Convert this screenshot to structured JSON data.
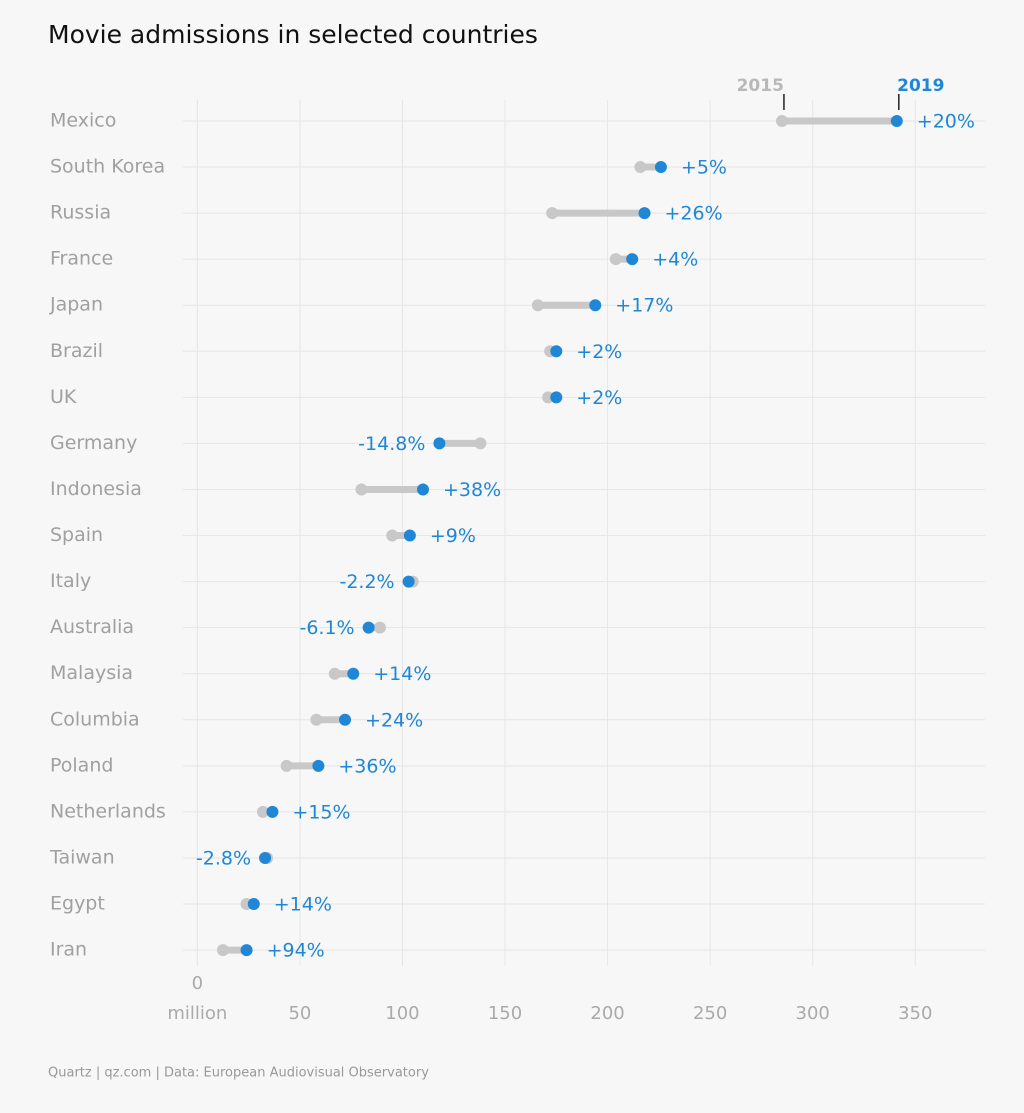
{
  "chart_data": {
    "type": "dumbbell",
    "title": "Movie admissions in selected countries",
    "x_label": "million",
    "source": "Quartz | qz.com | Data: European Audiovisual Observatory",
    "categories": [
      "Mexico",
      "South Korea",
      "Russia",
      "France",
      "Japan",
      "Brazil",
      "UK",
      "Germany",
      "Indonesia",
      "Spain",
      "Italy",
      "Australia",
      "Malaysia",
      "Columbia",
      "Poland",
      "Netherlands",
      "Taiwan",
      "Egypt",
      "Iran"
    ],
    "series": [
      {
        "name": "2015",
        "color": "#c8c8c8",
        "label_color": "#b8b8b8",
        "values": [
          285,
          216,
          173,
          204,
          166,
          172,
          171,
          138,
          80,
          95,
          105,
          89,
          67,
          58,
          43.5,
          32,
          34,
          24,
          12.5
        ]
      },
      {
        "name": "2019",
        "color": "#1f87d6",
        "label_color": "#1f87d6",
        "values": [
          341,
          226,
          218,
          212,
          194,
          175,
          175,
          118,
          110,
          103.6,
          103,
          83.5,
          76,
          72,
          59,
          36.6,
          33,
          27.5,
          24
        ]
      }
    ],
    "change_labels": [
      "+20%",
      "+5%",
      "+26%",
      "+4%",
      "+17%",
      "+2%",
      "+2%",
      "-14.8%",
      "+38%",
      "+9%",
      "-2.2%",
      "-6.1%",
      "+14%",
      "+24%",
      "+36%",
      "+15%",
      "-2.8%",
      "+14%",
      "+94%"
    ],
    "xlim": [
      -7,
      384
    ],
    "xticks": [
      0,
      50,
      100,
      150,
      200,
      250,
      300,
      350
    ],
    "grid": true
  }
}
